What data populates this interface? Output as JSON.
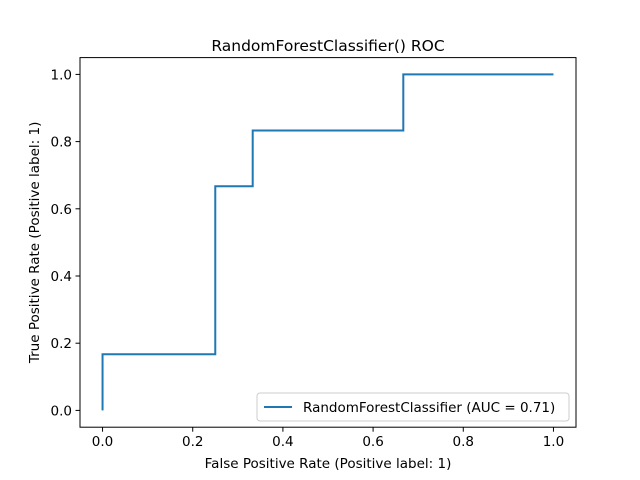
{
  "chart_data": {
    "type": "line",
    "title": "RandomForestClassifier() ROC",
    "xlabel": "False Positive Rate (Positive label: 1)",
    "ylabel": "True Positive Rate (Positive label: 1)",
    "xlim": [
      -0.05,
      1.05
    ],
    "ylim": [
      -0.05,
      1.05
    ],
    "xticks": [
      0.0,
      0.2,
      0.4,
      0.6,
      0.8,
      1.0
    ],
    "xtick_labels": [
      "0.0",
      "0.2",
      "0.4",
      "0.6",
      "0.8",
      "1.0"
    ],
    "yticks": [
      0.0,
      0.2,
      0.4,
      0.6,
      0.8,
      1.0
    ],
    "ytick_labels": [
      "0.0",
      "0.2",
      "0.4",
      "0.6",
      "0.8",
      "1.0"
    ],
    "grid": false,
    "legend_position": "lower-right",
    "series": [
      {
        "name": "RandomForestClassifier (AUC = 0.71)",
        "color": "#1f77b4",
        "x": [
          0.0,
          0.0,
          0.25,
          0.25,
          0.333,
          0.333,
          0.667,
          0.667,
          1.0
        ],
        "y": [
          0.0,
          0.167,
          0.167,
          0.667,
          0.667,
          0.833,
          0.833,
          1.0,
          1.0
        ]
      }
    ]
  }
}
